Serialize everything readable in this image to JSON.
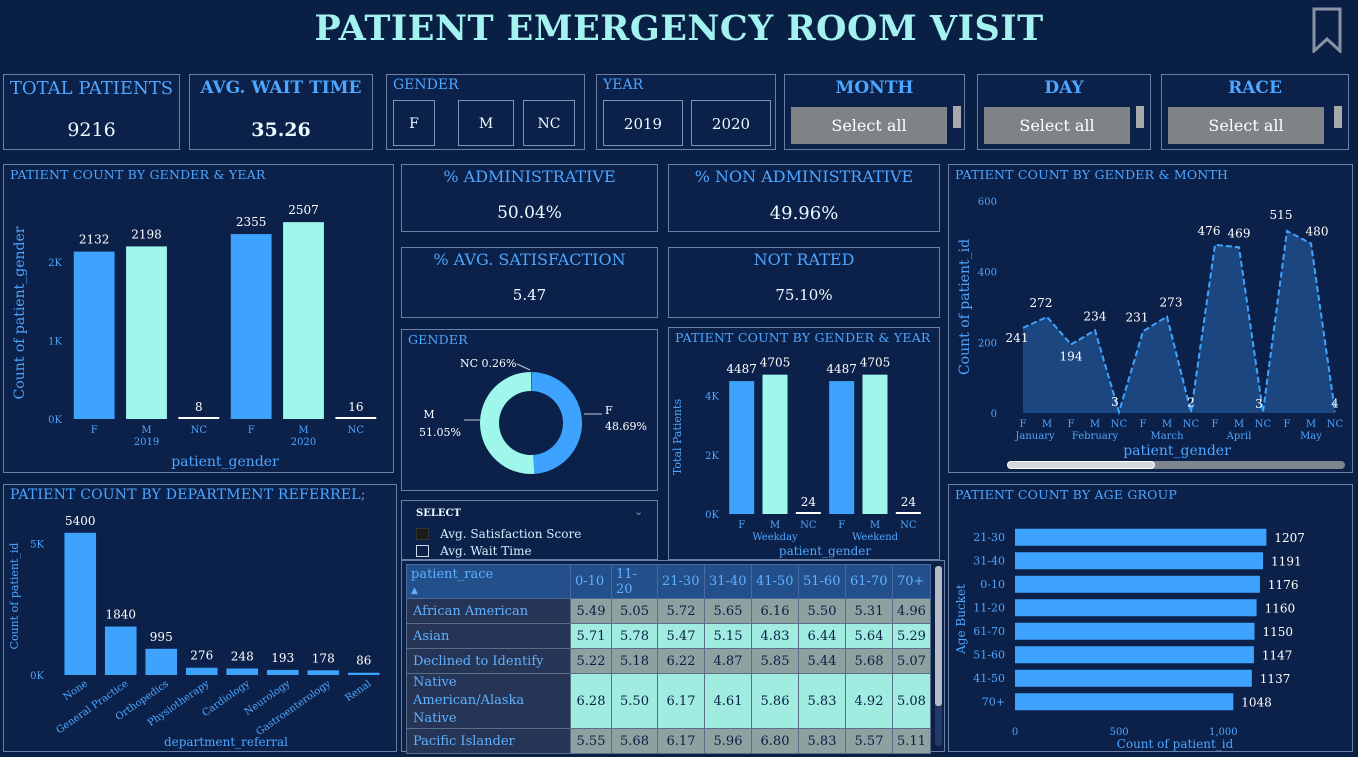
{
  "title": "PATIENT EMERGENCY ROOM VISIT",
  "kpis": {
    "total_patients_label": "TOTAL PATIENTS",
    "total_patients_value": "9216",
    "avg_wait_label": "AVG. WAIT TIME",
    "avg_wait_value": "35.26",
    "pct_admin_label": "% ADMINISTRATIVE",
    "pct_admin_value": "50.04%",
    "pct_non_admin_label": "% NON ADMINISTRATIVE",
    "pct_non_admin_value": "49.96%",
    "pct_avg_sat_label": "% AVG. SATISFACTION",
    "pct_avg_sat_value": "5.47",
    "not_rated_label": "NOT RATED",
    "not_rated_value": "75.10%"
  },
  "filters": {
    "gender_label": "GENDER",
    "gender_options": [
      "F",
      "M",
      "NC"
    ],
    "year_label": "YEAR",
    "year_options": [
      "2019",
      "2020"
    ],
    "month_label": "MONTH",
    "month_value": "Select all",
    "day_label": "DAY",
    "day_value": "Select all",
    "race_label": "RACE",
    "race_value": "Select all"
  },
  "select_legend": {
    "title": "SELECT",
    "items": [
      "Avg. Satisfaction Score",
      "Avg. Wait Time"
    ]
  },
  "colors": {
    "blue": "#3ea2ff",
    "aqua": "#9ef7ea",
    "bg": "#0a1f44",
    "accent": "#4da6ff"
  },
  "chart_data": [
    {
      "id": "gender_year",
      "type": "bar",
      "title": "PATIENT COUNT BY GENDER & YEAR",
      "xlabel": "patient_gender",
      "ylabel": "Count of patient_gender",
      "yticks": [
        "0K",
        "1K",
        "2K"
      ],
      "ylim": [
        0,
        2700
      ],
      "groups": [
        "2019",
        "2020"
      ],
      "categories": [
        "F",
        "M",
        "NC",
        "F",
        "M",
        "NC"
      ],
      "values": [
        2132,
        2198,
        8,
        2355,
        2507,
        16
      ]
    },
    {
      "id": "gender_month",
      "type": "area",
      "title": "PATIENT COUNT BY GENDER & MONTH",
      "xlabel": "patient_gender",
      "ylabel": "Count of patient_id",
      "yticks": [
        "0",
        "200",
        "400",
        "600"
      ],
      "ylim": [
        0,
        600
      ],
      "groups": [
        "January",
        "February",
        "March",
        "April",
        "May"
      ],
      "categories": [
        "F",
        "M",
        "F",
        "M",
        "NC",
        "F",
        "M",
        "NC",
        "F",
        "M",
        "NC",
        "F",
        "M",
        "NC"
      ],
      "values": [
        241,
        272,
        194,
        234,
        3,
        231,
        273,
        2,
        476,
        469,
        3,
        515,
        480,
        4
      ]
    },
    {
      "id": "gender_donut",
      "type": "pie",
      "title": "GENDER",
      "labels": [
        "F",
        "M",
        "NC"
      ],
      "values": [
        48.69,
        51.05,
        0.26
      ],
      "display": [
        "F 48.69%",
        "M 51.05%",
        "NC 0.26%"
      ]
    },
    {
      "id": "gender_daytype",
      "type": "bar",
      "title": "PATIENT COUNT BY GENDER & YEAR",
      "xlabel": "patient_gender",
      "ylabel": "Total Patients",
      "yticks": [
        "0K",
        "2K",
        "4K"
      ],
      "ylim": [
        0,
        5200
      ],
      "groups": [
        "Weekday",
        "Weekend"
      ],
      "categories": [
        "F",
        "M",
        "NC",
        "F",
        "M",
        "NC"
      ],
      "values": [
        4487,
        4705,
        24,
        4487,
        4705,
        24
      ]
    },
    {
      "id": "dept_referral",
      "type": "bar",
      "title": "PATIENT COUNT BY DEPARTMENT REFERREL;",
      "xlabel": "department_referral",
      "ylabel": "Count of patient_id",
      "yticks": [
        "0K",
        "5K"
      ],
      "ylim": [
        0,
        6000
      ],
      "categories": [
        "None",
        "General Practice",
        "Orthopedics",
        "Physiotherapy",
        "Cardiology",
        "Neurology",
        "Gastroenterology",
        "Renal"
      ],
      "values": [
        5400,
        1840,
        995,
        276,
        248,
        193,
        178,
        86
      ]
    },
    {
      "id": "age_group",
      "type": "bar",
      "title": "PATIENT COUNT BY AGE GROUP",
      "xlabel": "Count of patient_id",
      "ylabel": "Age Bucket",
      "xticks": [
        "0",
        "500",
        "1,000"
      ],
      "xlim": [
        0,
        1450
      ],
      "categories": [
        "21-30",
        "31-40",
        "0-10",
        "11-20",
        "61-70",
        "51-60",
        "41-50",
        "70+"
      ],
      "values": [
        1207,
        1191,
        1176,
        1160,
        1150,
        1147,
        1137,
        1048
      ]
    },
    {
      "id": "race_age_table",
      "type": "table",
      "columns": [
        "patient_race",
        "0-10",
        "11-20",
        "21-30",
        "31-40",
        "41-50",
        "51-60",
        "61-70",
        "70+"
      ],
      "rows": [
        {
          "label": "African American",
          "values": [
            "5.49",
            "5.05",
            "5.72",
            "5.65",
            "6.16",
            "5.50",
            "5.31",
            "4.96"
          ]
        },
        {
          "label": "Asian",
          "values": [
            "5.71",
            "5.78",
            "5.47",
            "5.15",
            "4.83",
            "6.44",
            "5.64",
            "5.29"
          ]
        },
        {
          "label": "Declined to Identify",
          "values": [
            "5.22",
            "5.18",
            "6.22",
            "4.87",
            "5.85",
            "5.44",
            "5.68",
            "5.07"
          ]
        },
        {
          "label": "Native American/Alaska Native",
          "values": [
            "6.28",
            "5.50",
            "6.17",
            "4.61",
            "5.86",
            "5.83",
            "4.92",
            "5.08"
          ]
        },
        {
          "label": "Pacific Islander",
          "values": [
            "5.55",
            "5.68",
            "6.17",
            "5.96",
            "6.80",
            "5.83",
            "5.57",
            "5.11"
          ]
        }
      ]
    }
  ]
}
